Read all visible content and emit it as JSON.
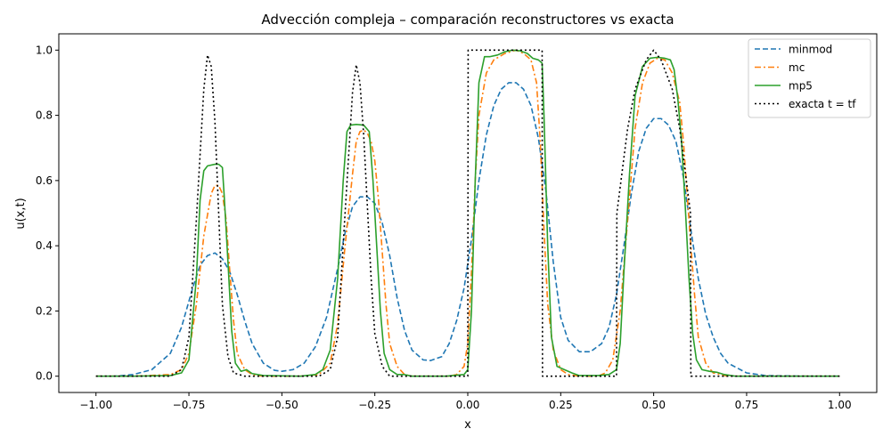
{
  "chart_data": {
    "type": "line",
    "title": "Advección compleja – comparación reconstructores vs exacta",
    "xlabel": "x",
    "ylabel": "u(x,t)",
    "xlim": [
      -1.1,
      1.1
    ],
    "ylim": [
      -0.05,
      1.05
    ],
    "xticks": [
      -1.0,
      -0.75,
      -0.5,
      -0.25,
      0.0,
      0.25,
      0.5,
      0.75,
      1.0
    ],
    "xtick_labels": [
      "−1.00",
      "−0.75",
      "−0.50",
      "−0.25",
      "0.00",
      "0.25",
      "0.50",
      "0.75",
      "1.00"
    ],
    "yticks": [
      0.0,
      0.2,
      0.4,
      0.6,
      0.8,
      1.0
    ],
    "ytick_labels": [
      "0.0",
      "0.2",
      "0.4",
      "0.6",
      "0.8",
      "1.0"
    ],
    "grid": false,
    "legend_position": "top-right",
    "series": [
      {
        "name": "minmod",
        "color": "#1f77b4",
        "style": "dashed",
        "points": [
          [
            -1.0,
            0.0
          ],
          [
            -0.95,
            0.0
          ],
          [
            -0.9,
            0.005
          ],
          [
            -0.85,
            0.02
          ],
          [
            -0.8,
            0.07
          ],
          [
            -0.77,
            0.15
          ],
          [
            -0.74,
            0.27
          ],
          [
            -0.72,
            0.34
          ],
          [
            -0.7,
            0.37
          ],
          [
            -0.68,
            0.378
          ],
          [
            -0.66,
            0.36
          ],
          [
            -0.64,
            0.32
          ],
          [
            -0.62,
            0.25
          ],
          [
            -0.6,
            0.17
          ],
          [
            -0.58,
            0.1
          ],
          [
            -0.55,
            0.04
          ],
          [
            -0.52,
            0.018
          ],
          [
            -0.5,
            0.015
          ],
          [
            -0.47,
            0.02
          ],
          [
            -0.44,
            0.04
          ],
          [
            -0.41,
            0.09
          ],
          [
            -0.38,
            0.18
          ],
          [
            -0.35,
            0.33
          ],
          [
            -0.33,
            0.44
          ],
          [
            -0.31,
            0.52
          ],
          [
            -0.29,
            0.55
          ],
          [
            -0.27,
            0.55
          ],
          [
            -0.25,
            0.53
          ],
          [
            -0.23,
            0.47
          ],
          [
            -0.21,
            0.37
          ],
          [
            -0.19,
            0.24
          ],
          [
            -0.17,
            0.14
          ],
          [
            -0.15,
            0.08
          ],
          [
            -0.12,
            0.05
          ],
          [
            -0.1,
            0.048
          ],
          [
            -0.07,
            0.06
          ],
          [
            -0.05,
            0.1
          ],
          [
            -0.03,
            0.17
          ],
          [
            -0.01,
            0.27
          ],
          [
            0.01,
            0.42
          ],
          [
            0.03,
            0.6
          ],
          [
            0.05,
            0.74
          ],
          [
            0.07,
            0.83
          ],
          [
            0.09,
            0.88
          ],
          [
            0.11,
            0.9
          ],
          [
            0.13,
            0.9
          ],
          [
            0.15,
            0.88
          ],
          [
            0.17,
            0.83
          ],
          [
            0.19,
            0.73
          ],
          [
            0.21,
            0.57
          ],
          [
            0.23,
            0.35
          ],
          [
            0.25,
            0.18
          ],
          [
            0.27,
            0.11
          ],
          [
            0.3,
            0.075
          ],
          [
            0.33,
            0.075
          ],
          [
            0.36,
            0.1
          ],
          [
            0.38,
            0.15
          ],
          [
            0.4,
            0.25
          ],
          [
            0.42,
            0.4
          ],
          [
            0.44,
            0.56
          ],
          [
            0.46,
            0.69
          ],
          [
            0.48,
            0.76
          ],
          [
            0.5,
            0.79
          ],
          [
            0.52,
            0.79
          ],
          [
            0.54,
            0.77
          ],
          [
            0.56,
            0.72
          ],
          [
            0.58,
            0.61
          ],
          [
            0.6,
            0.45
          ],
          [
            0.62,
            0.3
          ],
          [
            0.64,
            0.19
          ],
          [
            0.66,
            0.12
          ],
          [
            0.68,
            0.07
          ],
          [
            0.7,
            0.04
          ],
          [
            0.75,
            0.01
          ],
          [
            0.8,
            0.002
          ],
          [
            0.9,
            0.0
          ],
          [
            1.0,
            0.0
          ]
        ]
      },
      {
        "name": "mc",
        "color": "#ff7f0e",
        "style": "dashdot",
        "points": [
          [
            -1.0,
            0.0
          ],
          [
            -0.9,
            0.0
          ],
          [
            -0.8,
            0.005
          ],
          [
            -0.77,
            0.02
          ],
          [
            -0.75,
            0.07
          ],
          [
            -0.73,
            0.22
          ],
          [
            -0.71,
            0.43
          ],
          [
            -0.69,
            0.56
          ],
          [
            -0.68,
            0.585
          ],
          [
            -0.67,
            0.585
          ],
          [
            -0.66,
            0.56
          ],
          [
            -0.65,
            0.48
          ],
          [
            -0.64,
            0.32
          ],
          [
            -0.63,
            0.17
          ],
          [
            -0.62,
            0.07
          ],
          [
            -0.6,
            0.02
          ],
          [
            -0.58,
            0.005
          ],
          [
            -0.55,
            0.0
          ],
          [
            -0.45,
            0.0
          ],
          [
            -0.4,
            0.005
          ],
          [
            -0.37,
            0.04
          ],
          [
            -0.35,
            0.16
          ],
          [
            -0.33,
            0.4
          ],
          [
            -0.31,
            0.62
          ],
          [
            -0.3,
            0.72
          ],
          [
            -0.29,
            0.75
          ],
          [
            -0.28,
            0.755
          ],
          [
            -0.27,
            0.745
          ],
          [
            -0.26,
            0.72
          ],
          [
            -0.25,
            0.66
          ],
          [
            -0.24,
            0.54
          ],
          [
            -0.23,
            0.38
          ],
          [
            -0.22,
            0.22
          ],
          [
            -0.21,
            0.1
          ],
          [
            -0.19,
            0.03
          ],
          [
            -0.17,
            0.005
          ],
          [
            -0.15,
            0.0
          ],
          [
            -0.05,
            0.0
          ],
          [
            -0.03,
            0.005
          ],
          [
            -0.01,
            0.03
          ],
          [
            0.0,
            0.1
          ],
          [
            0.01,
            0.32
          ],
          [
            0.02,
            0.6
          ],
          [
            0.03,
            0.8
          ],
          [
            0.05,
            0.93
          ],
          [
            0.07,
            0.97
          ],
          [
            0.1,
            0.99
          ],
          [
            0.13,
            1.0
          ],
          [
            0.15,
            0.99
          ],
          [
            0.17,
            0.97
          ],
          [
            0.185,
            0.9
          ],
          [
            0.195,
            0.72
          ],
          [
            0.205,
            0.45
          ],
          [
            0.215,
            0.22
          ],
          [
            0.23,
            0.08
          ],
          [
            0.25,
            0.02
          ],
          [
            0.27,
            0.005
          ],
          [
            0.3,
            0.0
          ],
          [
            0.35,
            0.0
          ],
          [
            0.37,
            0.01
          ],
          [
            0.39,
            0.05
          ],
          [
            0.41,
            0.2
          ],
          [
            0.43,
            0.48
          ],
          [
            0.45,
            0.76
          ],
          [
            0.47,
            0.9
          ],
          [
            0.49,
            0.96
          ],
          [
            0.51,
            0.975
          ],
          [
            0.53,
            0.97
          ],
          [
            0.55,
            0.93
          ],
          [
            0.57,
            0.84
          ],
          [
            0.58,
            0.72
          ],
          [
            0.59,
            0.56
          ],
          [
            0.6,
            0.4
          ],
          [
            0.61,
            0.25
          ],
          [
            0.62,
            0.12
          ],
          [
            0.64,
            0.04
          ],
          [
            0.66,
            0.01
          ],
          [
            0.7,
            0.0
          ],
          [
            1.0,
            0.0
          ]
        ]
      },
      {
        "name": "mp5",
        "color": "#2ca02c",
        "style": "solid",
        "points": [
          [
            -1.0,
            0.0
          ],
          [
            -0.9,
            0.0
          ],
          [
            -0.8,
            0.002
          ],
          [
            -0.77,
            0.01
          ],
          [
            -0.75,
            0.05
          ],
          [
            -0.73,
            0.3
          ],
          [
            -0.72,
            0.54
          ],
          [
            -0.71,
            0.63
          ],
          [
            -0.7,
            0.645
          ],
          [
            -0.68,
            0.65
          ],
          [
            -0.67,
            0.65
          ],
          [
            -0.66,
            0.64
          ],
          [
            -0.655,
            0.55
          ],
          [
            -0.645,
            0.35
          ],
          [
            -0.635,
            0.14
          ],
          [
            -0.625,
            0.04
          ],
          [
            -0.61,
            0.015
          ],
          [
            -0.595,
            0.02
          ],
          [
            -0.58,
            0.008
          ],
          [
            -0.55,
            0.002
          ],
          [
            -0.45,
            0.0
          ],
          [
            -0.41,
            0.005
          ],
          [
            -0.39,
            0.02
          ],
          [
            -0.37,
            0.08
          ],
          [
            -0.35,
            0.3
          ],
          [
            -0.335,
            0.6
          ],
          [
            -0.325,
            0.75
          ],
          [
            -0.315,
            0.77
          ],
          [
            -0.3,
            0.772
          ],
          [
            -0.28,
            0.77
          ],
          [
            -0.265,
            0.75
          ],
          [
            -0.255,
            0.6
          ],
          [
            -0.245,
            0.4
          ],
          [
            -0.235,
            0.2
          ],
          [
            -0.225,
            0.07
          ],
          [
            -0.21,
            0.02
          ],
          [
            -0.19,
            0.005
          ],
          [
            -0.17,
            0.005
          ],
          [
            -0.15,
            0.0
          ],
          [
            -0.06,
            0.0
          ],
          [
            -0.03,
            0.003
          ],
          [
            -0.01,
            0.005
          ],
          [
            0.0,
            0.02
          ],
          [
            0.01,
            0.2
          ],
          [
            0.02,
            0.6
          ],
          [
            0.03,
            0.9
          ],
          [
            0.045,
            0.98
          ],
          [
            0.06,
            0.98
          ],
          [
            0.08,
            0.985
          ],
          [
            0.1,
            0.995
          ],
          [
            0.12,
            1.0
          ],
          [
            0.14,
            0.998
          ],
          [
            0.16,
            0.99
          ],
          [
            0.175,
            0.975
          ],
          [
            0.19,
            0.97
          ],
          [
            0.2,
            0.96
          ],
          [
            0.205,
            0.8
          ],
          [
            0.215,
            0.4
          ],
          [
            0.225,
            0.12
          ],
          [
            0.24,
            0.03
          ],
          [
            0.26,
            0.02
          ],
          [
            0.28,
            0.01
          ],
          [
            0.3,
            0.002
          ],
          [
            0.35,
            0.002
          ],
          [
            0.38,
            0.005
          ],
          [
            0.4,
            0.02
          ],
          [
            0.41,
            0.1
          ],
          [
            0.42,
            0.32
          ],
          [
            0.435,
            0.62
          ],
          [
            0.45,
            0.86
          ],
          [
            0.47,
            0.95
          ],
          [
            0.49,
            0.975
          ],
          [
            0.51,
            0.978
          ],
          [
            0.53,
            0.975
          ],
          [
            0.545,
            0.97
          ],
          [
            0.555,
            0.94
          ],
          [
            0.565,
            0.85
          ],
          [
            0.575,
            0.72
          ],
          [
            0.585,
            0.52
          ],
          [
            0.595,
            0.3
          ],
          [
            0.605,
            0.13
          ],
          [
            0.615,
            0.05
          ],
          [
            0.63,
            0.02
          ],
          [
            0.65,
            0.015
          ],
          [
            0.67,
            0.012
          ],
          [
            0.69,
            0.005
          ],
          [
            0.72,
            0.0
          ],
          [
            1.0,
            0.0
          ]
        ]
      },
      {
        "name": "exacta t = tf",
        "color": "#000000",
        "style": "dotted",
        "points": [
          [
            -1.0,
            0.0
          ],
          [
            -0.8,
            0.0
          ],
          [
            -0.77,
            0.02
          ],
          [
            -0.75,
            0.12
          ],
          [
            -0.73,
            0.48
          ],
          [
            -0.71,
            0.88
          ],
          [
            -0.7,
            0.985
          ],
          [
            -0.69,
            0.95
          ],
          [
            -0.68,
            0.78
          ],
          [
            -0.67,
            0.5
          ],
          [
            -0.66,
            0.22
          ],
          [
            -0.645,
            0.06
          ],
          [
            -0.63,
            0.01
          ],
          [
            -0.6,
            0.0
          ],
          [
            -0.4,
            0.0
          ],
          [
            -0.37,
            0.02
          ],
          [
            -0.35,
            0.12
          ],
          [
            -0.33,
            0.5
          ],
          [
            -0.31,
            0.87
          ],
          [
            -0.3,
            0.955
          ],
          [
            -0.29,
            0.9
          ],
          [
            -0.28,
            0.74
          ],
          [
            -0.27,
            0.52
          ],
          [
            -0.26,
            0.3
          ],
          [
            -0.25,
            0.13
          ],
          [
            -0.23,
            0.03
          ],
          [
            -0.21,
            0.0
          ],
          [
            0.0,
            0.0
          ],
          [
            0.001,
            1.0
          ],
          [
            0.2,
            1.0
          ],
          [
            0.201,
            0.0
          ],
          [
            0.4,
            0.0
          ],
          [
            0.401,
            0.5
          ],
          [
            0.43,
            0.76
          ],
          [
            0.45,
            0.88
          ],
          [
            0.48,
            0.97
          ],
          [
            0.5,
            1.0
          ],
          [
            0.52,
            0.97
          ],
          [
            0.55,
            0.88
          ],
          [
            0.57,
            0.76
          ],
          [
            0.599,
            0.5
          ],
          [
            0.6,
            0.0
          ],
          [
            1.0,
            0.0
          ]
        ]
      }
    ]
  }
}
